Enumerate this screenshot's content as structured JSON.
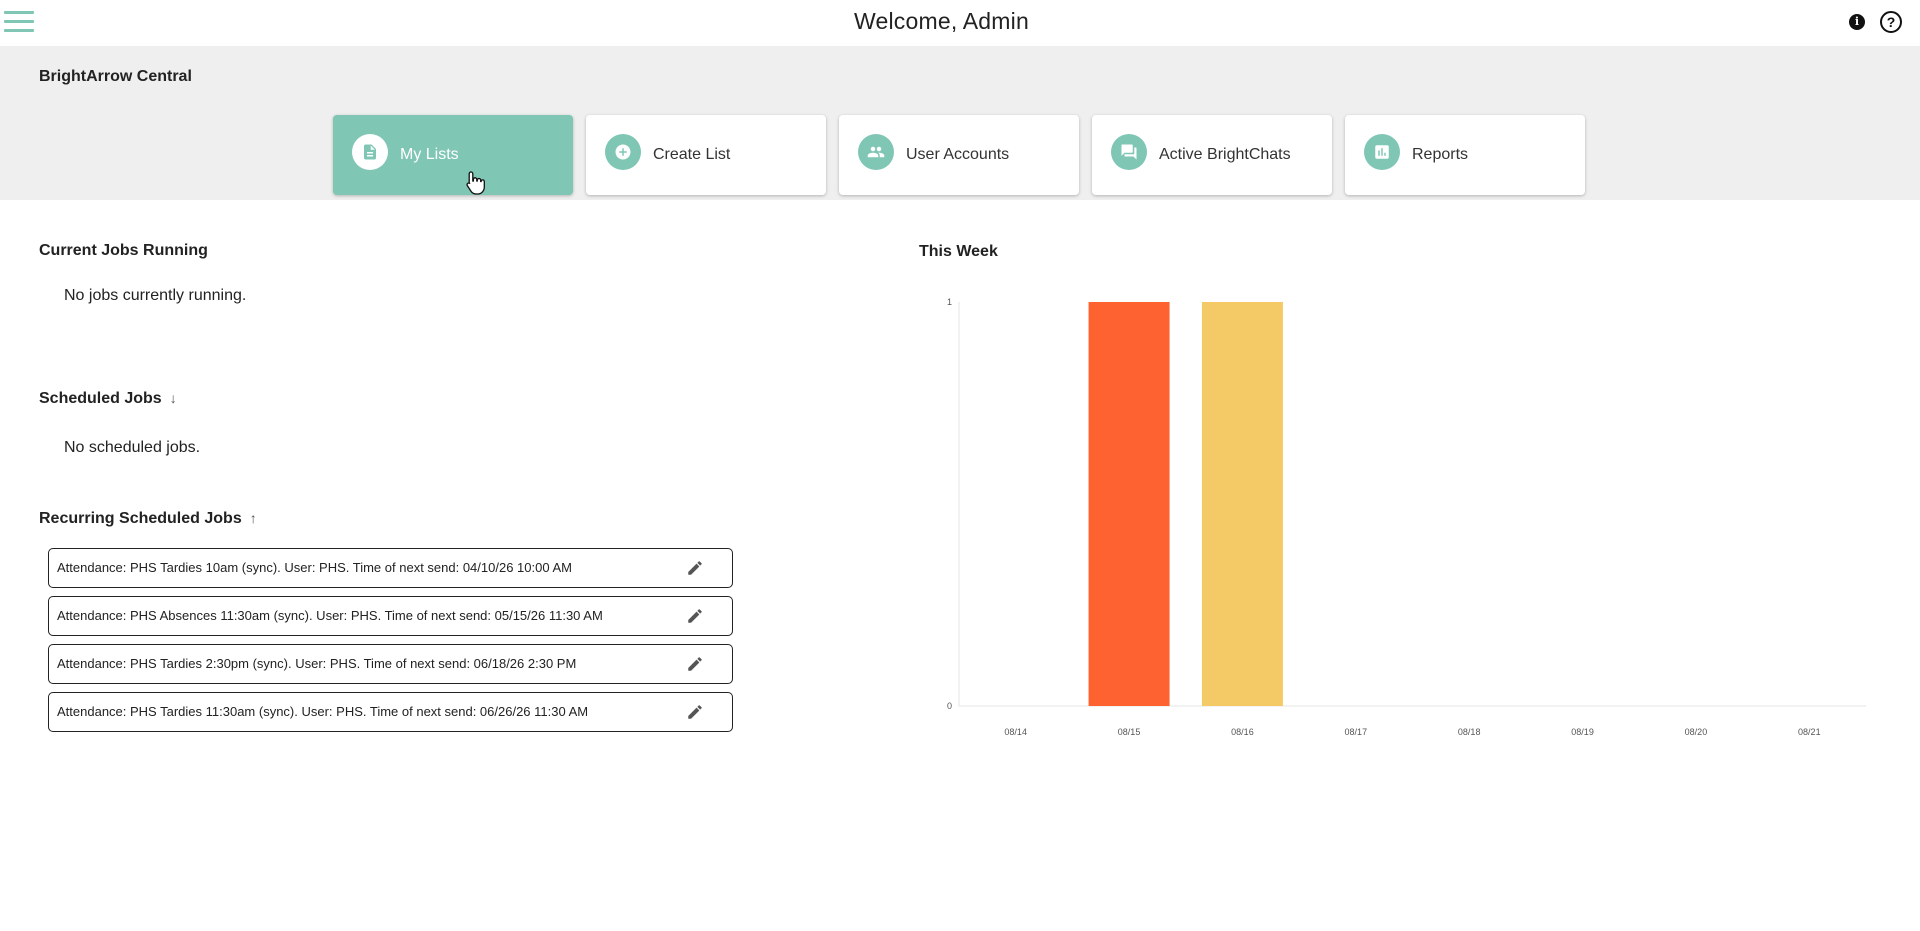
{
  "header": {
    "title": "Welcome, Admin",
    "menu_icon": "hamburger-menu-icon",
    "info_icon": "info-icon",
    "info_glyph": "i",
    "help_icon": "help-icon",
    "help_glyph": "?"
  },
  "band": {
    "title": "BrightArrow Central",
    "tiles": [
      {
        "label": "My Lists",
        "icon": "document-icon",
        "active": true
      },
      {
        "label": "Create List",
        "icon": "add-circle-icon",
        "active": false
      },
      {
        "label": "User Accounts",
        "icon": "people-icon",
        "active": false
      },
      {
        "label": "Active BrightChats",
        "icon": "chat-icon",
        "active": false
      },
      {
        "label": "Reports",
        "icon": "bar-chart-icon",
        "active": false
      }
    ]
  },
  "current_jobs": {
    "title": "Current Jobs Running",
    "empty_text": "No jobs currently running."
  },
  "scheduled_jobs": {
    "title": "Scheduled Jobs",
    "sort_glyph": "↓",
    "empty_text": "No scheduled jobs."
  },
  "recurring_jobs": {
    "title": "Recurring Scheduled Jobs",
    "sort_glyph": "↑",
    "items": [
      "Attendance: PHS Tardies 10am (sync). User: PHS. Time of next send: 04/10/26 10:00 AM",
      "Attendance: PHS Absences 11:30am (sync). User: PHS. Time of next send: 05/15/26 11:30 AM",
      "Attendance: PHS Tardies 2:30pm (sync). User: PHS. Time of next send: 06/18/26 2:30 PM",
      "Attendance: PHS Tardies 11:30am (sync). User: PHS. Time of next send: 06/26/26 11:30 AM"
    ]
  },
  "colors": {
    "accent": "#7fc6b4",
    "bar_orange": "#fd6230",
    "bar_yellow": "#f4ca66"
  },
  "chart_data": {
    "type": "bar",
    "title": "This Week",
    "categories": [
      "08/14",
      "08/15",
      "08/16",
      "08/17",
      "08/18",
      "08/19",
      "08/20",
      "08/21"
    ],
    "series": [
      {
        "values": [
          0,
          1,
          0,
          0,
          0,
          0,
          0,
          0
        ],
        "color": "#fd6230"
      },
      {
        "values": [
          0,
          0,
          1,
          0,
          0,
          0,
          0,
          0
        ],
        "color": "#f4ca66"
      }
    ],
    "ylim": [
      0,
      1
    ],
    "yticks": [
      "0",
      "1"
    ],
    "grid": false,
    "legend": "none"
  }
}
